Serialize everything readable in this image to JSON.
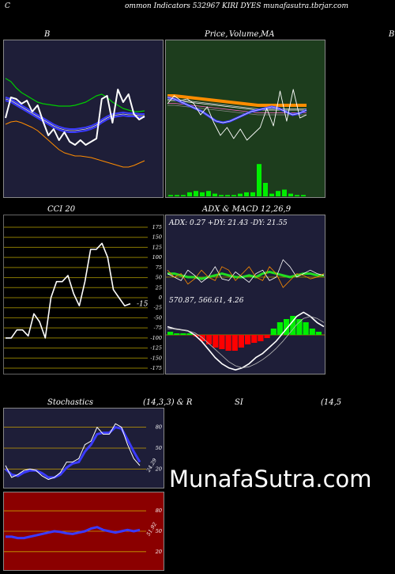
{
  "header": {
    "left_letter": "C",
    "title": "ommon  Indicators 532967 KIRI DYES munafasutra.tbrjar.com"
  },
  "panel_titles": {
    "bb": "B",
    "price_a": "Price,",
    "price_b": "Volume,",
    "price_c": "MA",
    "right_edge": "B",
    "cci": "CCI 20",
    "adx": "ADX  & MACD 12,26,9",
    "stoch_a": "Stochastics",
    "stoch_b": "(14,3,3) & R",
    "rsi_a": "SI",
    "rsi_b": "(14,5"
  },
  "watermark": "MunafaSutra.com",
  "colors": {
    "navy_bg": "#1e1e38",
    "green_bg": "#1d3d1d",
    "red_bg": "#8b0000",
    "orange": "#ff8c00",
    "blue": "#3a3aff",
    "green_line": "#00cc00",
    "white": "#ffffff"
  },
  "chart_data": [
    {
      "type": "line",
      "name": "bollinger",
      "title": "B",
      "series": [
        {
          "name": "upper",
          "values": [
            150,
            146,
            138,
            132,
            128,
            124,
            120,
            118,
            117,
            116,
            115,
            115,
            115,
            116,
            118,
            120,
            124,
            128,
            130,
            126,
            120,
            116,
            112,
            110,
            108,
            108,
            109
          ]
        },
        {
          "name": "middle",
          "values": [
            124,
            122,
            118,
            114,
            110,
            106,
            102,
            98,
            94,
            90,
            87,
            85,
            84,
            84,
            85,
            86,
            88,
            91,
            96,
            100,
            103,
            104,
            105,
            104,
            104,
            103,
            103
          ]
        },
        {
          "name": "lower",
          "values": [
            92,
            95,
            96,
            94,
            91,
            88,
            84,
            78,
            72,
            66,
            60,
            56,
            54,
            52,
            52,
            51,
            50,
            48,
            46,
            44,
            42,
            40,
            38,
            38,
            40,
            43,
            46
          ]
        },
        {
          "name": "price",
          "values": [
            100,
            126,
            124,
            118,
            122,
            108,
            116,
            96,
            78,
            86,
            72,
            82,
            70,
            66,
            72,
            66,
            70,
            74,
            124,
            128,
            94,
            136,
            120,
            130,
            105,
            98,
            102
          ]
        }
      ]
    },
    {
      "type": "line",
      "name": "price-volume-ma",
      "title": "Price, Volume, MA",
      "series": [
        {
          "name": "ma-orange",
          "values": [
            128,
            128,
            127,
            126,
            125,
            124,
            123,
            122,
            121,
            120,
            119,
            118,
            117,
            116,
            116,
            116,
            116,
            116,
            116,
            116,
            116
          ]
        },
        {
          "name": "ma-blue",
          "values": [
            126,
            124,
            120,
            116,
            112,
            108,
            102,
            96,
            94,
            96,
            100,
            104,
            108,
            110,
            112,
            114,
            112,
            108,
            104,
            106,
            110
          ]
        },
        {
          "name": "price",
          "values": [
            118,
            128,
            122,
            124,
            118,
            104,
            114,
            94,
            78,
            88,
            74,
            86,
            72,
            80,
            88,
            112,
            90,
            134,
            96,
            136,
            100,
            104
          ]
        },
        {
          "name": "volume",
          "values": [
            1,
            1,
            1,
            3,
            4,
            3,
            4,
            2,
            1,
            1,
            1,
            2,
            3,
            3,
            24,
            10,
            2,
            4,
            5,
            2,
            1,
            1
          ]
        }
      ]
    },
    {
      "type": "line",
      "name": "cci",
      "title": "CCI 20",
      "yticks": [
        "175",
        "150",
        "125",
        "100",
        "75",
        "50",
        "25",
        "0",
        "-25",
        "-50",
        "-75",
        "-100",
        "-125",
        "-150",
        "-175"
      ],
      "ylim": [
        -175,
        175
      ],
      "last_value": "-15",
      "series": [
        {
          "name": "cci",
          "values": [
            -100,
            -100,
            -80,
            -80,
            -95,
            -40,
            -60,
            -100,
            0,
            40,
            40,
            55,
            10,
            -20,
            40,
            120,
            120,
            135,
            100,
            20,
            0,
            -20,
            -15
          ]
        }
      ]
    },
    {
      "type": "line",
      "name": "adx-macd",
      "title": "ADX  & MACD 12,26,9",
      "adx_text": "ADX: 0.27 +DY: 21.43 -DY: 21.55",
      "macd_text": "570.87,  566.61,  4.26",
      "series": [
        {
          "name": "adx",
          "values": [
            22,
            22,
            21,
            20,
            20,
            19,
            20,
            21,
            22,
            21,
            20,
            20,
            21,
            20,
            22,
            23,
            22,
            21,
            20,
            21,
            22,
            22,
            21,
            21
          ]
        },
        {
          "name": "plus-dy",
          "values": [
            22,
            20,
            18,
            24,
            21,
            17,
            20,
            26,
            19,
            18,
            23,
            20,
            17,
            22,
            24,
            18,
            20,
            30,
            26,
            20,
            22,
            24,
            22,
            21
          ]
        },
        {
          "name": "minus-dy",
          "values": [
            24,
            20,
            22,
            16,
            19,
            24,
            20,
            18,
            26,
            24,
            18,
            22,
            26,
            20,
            18,
            26,
            22,
            14,
            18,
            22,
            21,
            19,
            20,
            22
          ]
        },
        {
          "name": "macd",
          "values": [
            8,
            6,
            5,
            4,
            0,
            -6,
            -14,
            -22,
            -28,
            -32,
            -34,
            -32,
            -28,
            -22,
            -18,
            -12,
            -6,
            2,
            10,
            18,
            22,
            18,
            12,
            8
          ]
        },
        {
          "name": "signal",
          "values": [
            6,
            6,
            5,
            4,
            2,
            -2,
            -8,
            -14,
            -20,
            -26,
            -30,
            -32,
            -31,
            -28,
            -24,
            -19,
            -13,
            -6,
            2,
            10,
            16,
            18,
            16,
            12
          ]
        },
        {
          "name": "histogram",
          "values": [
            2,
            1,
            1,
            1,
            -1,
            -4,
            -6,
            -8,
            -9,
            -10,
            -10,
            -8,
            -6,
            -5,
            -4,
            -2,
            4,
            8,
            10,
            12,
            10,
            8,
            4,
            2
          ]
        }
      ]
    },
    {
      "type": "line",
      "name": "stochastics",
      "title": "Stochastics (14,3,3)",
      "yticks": [
        "80",
        "50",
        "20"
      ],
      "ylim": [
        0,
        100
      ],
      "last_value": "24.29",
      "series": [
        {
          "name": "k",
          "values": [
            25,
            8,
            12,
            18,
            20,
            18,
            10,
            5,
            8,
            15,
            30,
            30,
            35,
            55,
            60,
            80,
            70,
            70,
            85,
            80,
            55,
            35,
            25
          ]
        },
        {
          "name": "d",
          "values": [
            20,
            12,
            10,
            15,
            18,
            18,
            14,
            8,
            8,
            12,
            22,
            28,
            30,
            45,
            55,
            70,
            72,
            72,
            80,
            78,
            62,
            45,
            30
          ]
        }
      ]
    },
    {
      "type": "line",
      "name": "rsi",
      "title": "RSI (14,5)",
      "yticks": [
        "80",
        "50",
        "20"
      ],
      "ylim": [
        0,
        100
      ],
      "last_value": "51.92",
      "series": [
        {
          "name": "rsi",
          "values": [
            42,
            42,
            40,
            40,
            42,
            44,
            46,
            48,
            50,
            49,
            47,
            46,
            48,
            50,
            54,
            56,
            52,
            50,
            48,
            50,
            52,
            50,
            52
          ]
        }
      ]
    }
  ]
}
